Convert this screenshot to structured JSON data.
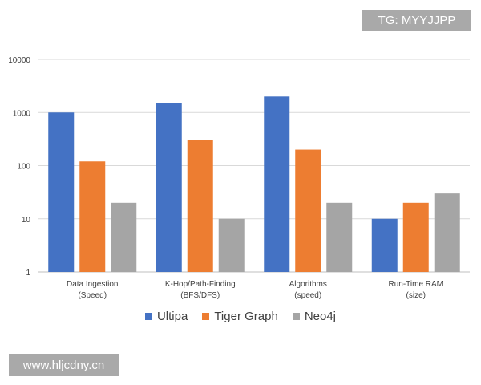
{
  "watermarks": {
    "top": "TG: MYYJJPP",
    "bottom": "www.hljcdny.cn"
  },
  "chart_data": {
    "type": "bar",
    "scale": "log",
    "ylim": [
      1,
      10000
    ],
    "yticks": [
      "1",
      "10",
      "100",
      "1000",
      "10000"
    ],
    "categories": [
      [
        "Data Ingestion",
        "(Speed)"
      ],
      [
        "K-Hop/Path-Finding",
        "(BFS/DFS)"
      ],
      [
        "Algorithms",
        "(speed)"
      ],
      [
        "Run-Time RAM",
        "(size)"
      ]
    ],
    "series": [
      {
        "name": "Ultipa",
        "color": "#4472c4",
        "values": [
          1000,
          1500,
          2000,
          10
        ]
      },
      {
        "name": "Tiger Graph",
        "color": "#ed7d31",
        "values": [
          120,
          300,
          200,
          20
        ]
      },
      {
        "name": "Neo4j",
        "color": "#a5a5a5",
        "values": [
          20,
          10,
          20,
          30
        ]
      }
    ],
    "grid": true,
    "legend_position": "bottom"
  }
}
